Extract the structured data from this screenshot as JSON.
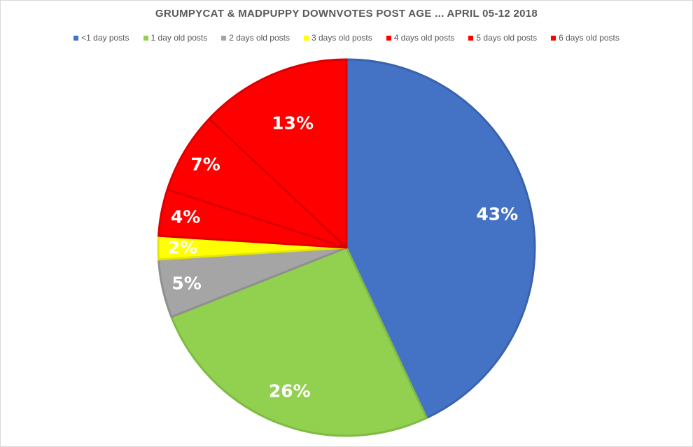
{
  "chart_data": {
    "type": "pie",
    "title": "GRUMPYCAT & MADPUPPY DOWNVOTES POST AGE ... APRIL 05-12  2018",
    "legend_position": "top",
    "categories": [
      "<1 day posts",
      "1 day old posts",
      "2 days old posts",
      "3 days old posts",
      "4 days old posts",
      "5 days old posts",
      "6 days old posts"
    ],
    "values": [
      43,
      26,
      5,
      2,
      4,
      7,
      13
    ],
    "labels": [
      "43%",
      "26%",
      "5%",
      "2%",
      "4%",
      "7%",
      "13%"
    ],
    "colors": [
      "#4472C4",
      "#92D050",
      "#A5A5A5",
      "#FFFF00",
      "#FF0000",
      "#FF0000",
      "#FF0000"
    ],
    "border_colors": [
      "#3A63AD",
      "#7FBA43",
      "#8F8F8F",
      "#E6E600",
      "#DC0000",
      "#DC0000",
      "#DC0000"
    ]
  }
}
